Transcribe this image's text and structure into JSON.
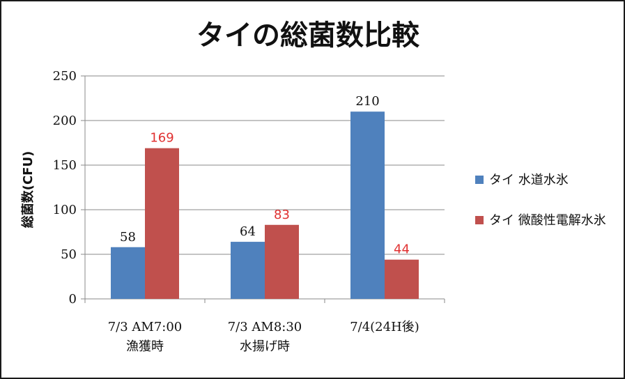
{
  "chart_data": {
    "type": "bar",
    "title": "タイの総菌数比較",
    "ylabel": "総菌数(CFU)",
    "xlabel": "",
    "ylim": [
      0,
      250
    ],
    "yticks": [
      "0",
      "50",
      "100",
      "150",
      "200",
      "250"
    ],
    "categories": [
      [
        "7/3 AM7:00",
        "漁獲時"
      ],
      [
        "7/3 AM8:30",
        "水揚げ時"
      ],
      [
        "7/4(24H後)"
      ]
    ],
    "series": [
      {
        "name": "タイ 水道水氷",
        "color": "#4f81bd",
        "label_color": "#111111",
        "values": [
          58,
          64,
          210
        ],
        "labels": [
          "58",
          "64",
          "210"
        ]
      },
      {
        "name": "タイ 微酸性電解水氷",
        "color": "#c0504d",
        "label_color": "#e03030",
        "values": [
          169,
          83,
          44
        ],
        "labels": [
          "169",
          "83",
          "44"
        ]
      }
    ],
    "grid": true,
    "legend": "right"
  }
}
